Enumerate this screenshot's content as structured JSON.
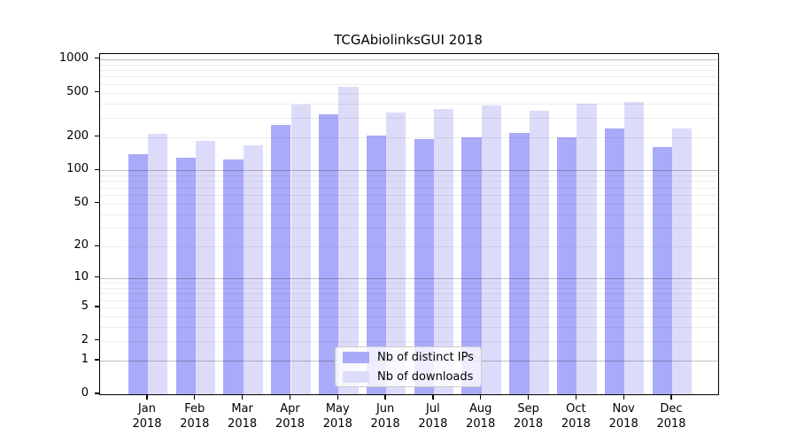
{
  "title": "TCGAbiolinksGUI 2018",
  "chart_data": {
    "type": "bar",
    "title": "TCGAbiolinksGUI 2018",
    "categories": [
      "Jan 2018",
      "Feb 2018",
      "Mar 2018",
      "Apr 2018",
      "May 2018",
      "Jun 2018",
      "Jul 2018",
      "Aug 2018",
      "Sep 2018",
      "Oct 2018",
      "Nov 2018",
      "Dec 2018"
    ],
    "x_tick_months": [
      "Jan",
      "Feb",
      "Mar",
      "Apr",
      "May",
      "Jun",
      "Jul",
      "Aug",
      "Sep",
      "Oct",
      "Nov",
      "Dec"
    ],
    "x_tick_year": "2018",
    "series": [
      {
        "name": "Nb of distinct IPs",
        "color": "#aaaafa",
        "values": [
          140,
          131,
          125,
          257,
          322,
          208,
          193,
          199,
          217,
          200,
          239,
          163
        ]
      },
      {
        "name": "Nb of downloads",
        "color": "#dcdcfa",
        "values": [
          214,
          186,
          168,
          390,
          568,
          334,
          358,
          387,
          343,
          399,
          412,
          238
        ]
      }
    ],
    "xlabel": "",
    "ylabel": "",
    "y_axis": {
      "scale": "log1p",
      "ticks": [
        0,
        1,
        2,
        5,
        10,
        20,
        50,
        100,
        200,
        500,
        1000
      ],
      "ylim": [
        0,
        1000
      ],
      "minor_grid_decades": [
        1,
        10,
        100
      ]
    },
    "grid": "horizontal major+minor, drawn above bars",
    "legend": {
      "position": "lower center",
      "entries": [
        "Nb of distinct IPs",
        "Nb of downloads"
      ]
    }
  },
  "colors": {
    "series_ips": "#aaaafa",
    "series_downloads": "#dcdcfa",
    "grid_major": "rgba(0,0,0,0.24)",
    "grid_minor": "rgba(0,0,0,0.07)",
    "spine": "#000000",
    "background": "#ffffff",
    "legend_border": "#cccccc"
  }
}
